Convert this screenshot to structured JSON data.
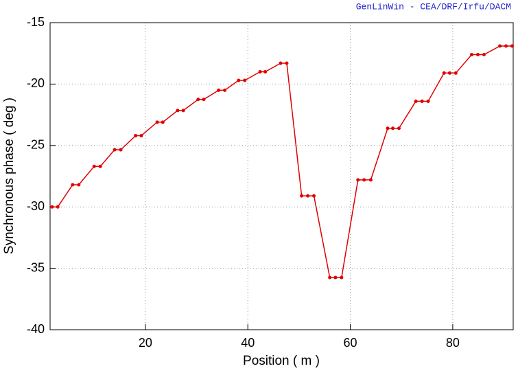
{
  "chart_data": {
    "type": "line",
    "credit": "GenLinWin - CEA/DRF/Irfu/DACM",
    "x_label": "Position ( m )",
    "y_label": "Synchronous phase ( deg )",
    "xlim": [
      1.4,
      91.8
    ],
    "ylim": [
      -40,
      -15
    ],
    "xticks": [
      20,
      40,
      60,
      80
    ],
    "yticks": [
      -15,
      -20,
      -25,
      -30,
      -35,
      -40
    ],
    "grid": true,
    "series": [
      {
        "name": "Synchronous phase",
        "color": "#e00000",
        "x": [
          1.8,
          2.9,
          5.8,
          7.0,
          10.0,
          11.2,
          14.0,
          15.2,
          18.1,
          19.2,
          22.3,
          23.4,
          26.3,
          27.4,
          30.3,
          31.4,
          34.3,
          35.5,
          38.2,
          39.4,
          42.4,
          43.4,
          46.4,
          47.6,
          50.5,
          51.7,
          52.9,
          56.0,
          57.1,
          58.3,
          61.5,
          62.7,
          64.0,
          67.3,
          68.3,
          69.5,
          72.8,
          74.0,
          75.2,
          78.3,
          79.4,
          80.6,
          83.7,
          84.9,
          86.1,
          89.2,
          90.4,
          91.6
        ],
        "values": [
          -30.0,
          -30.0,
          -28.2,
          -28.2,
          -26.7,
          -26.7,
          -25.35,
          -25.35,
          -24.2,
          -24.2,
          -23.1,
          -23.1,
          -22.15,
          -22.15,
          -21.25,
          -21.25,
          -20.5,
          -20.5,
          -19.7,
          -19.7,
          -19.0,
          -19.0,
          -18.3,
          -18.3,
          -29.1,
          -29.1,
          -29.1,
          -35.75,
          -35.75,
          -35.75,
          -27.8,
          -27.8,
          -27.8,
          -23.6,
          -23.6,
          -23.6,
          -21.4,
          -21.4,
          -21.4,
          -19.1,
          -19.1,
          -19.1,
          -17.6,
          -17.6,
          -17.6,
          -16.9,
          -16.9,
          -16.9
        ]
      }
    ]
  }
}
